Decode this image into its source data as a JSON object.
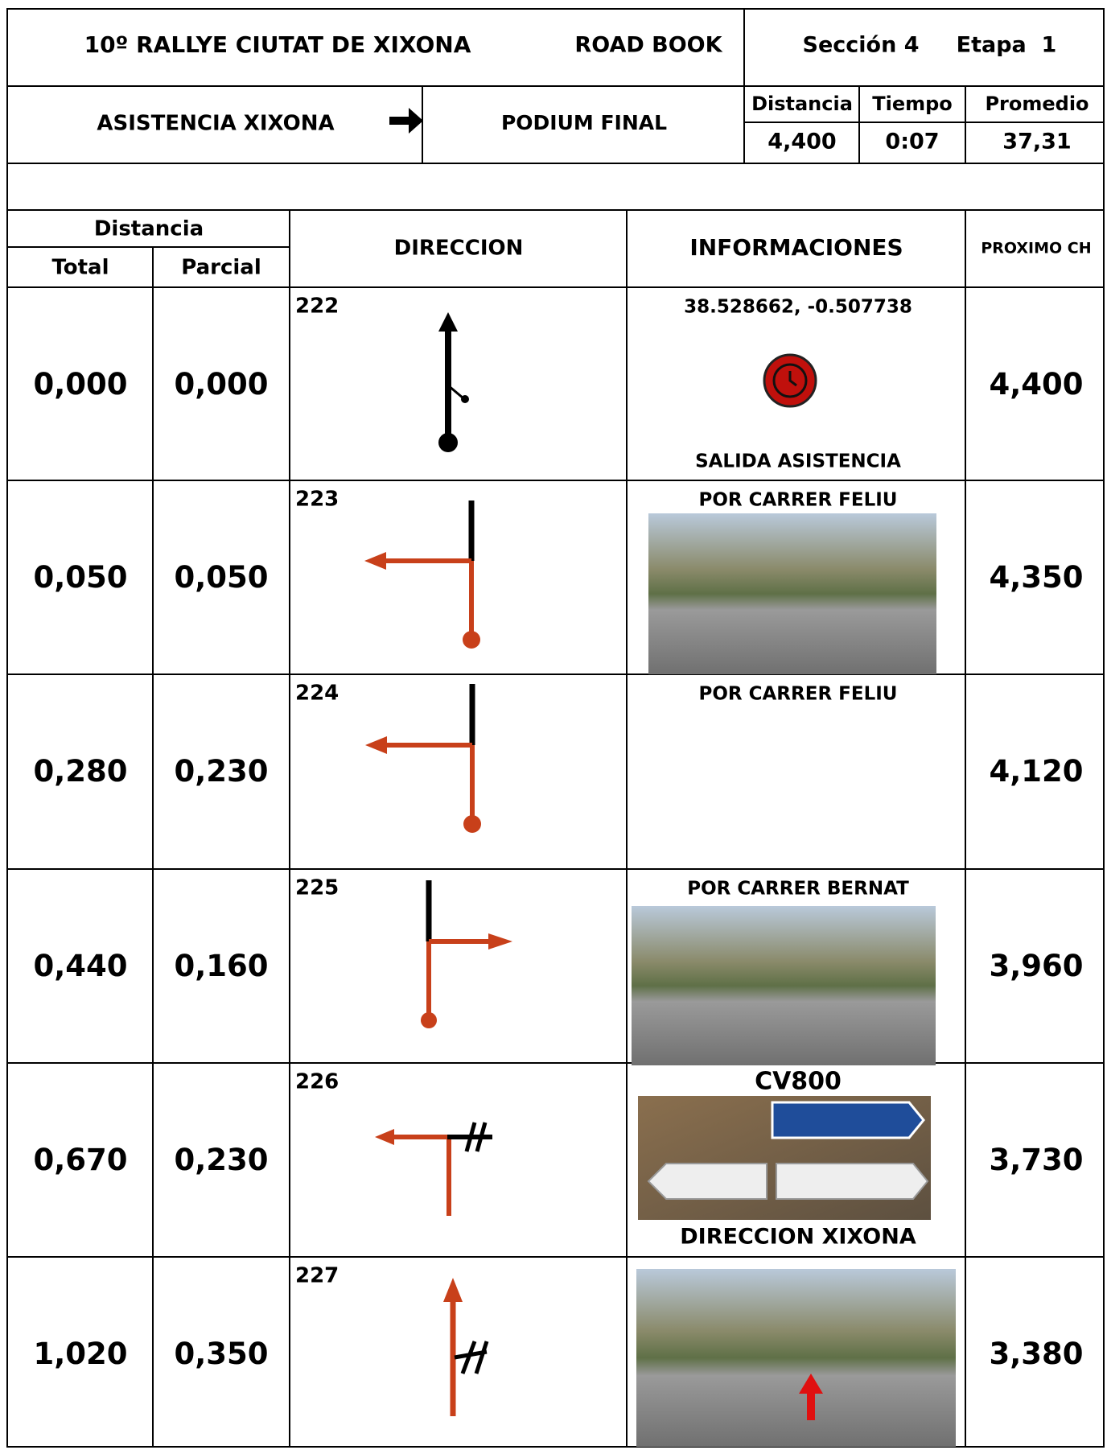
{
  "header": {
    "title": "10º RALLYE CIUTAT DE XIXONA",
    "subtitle": "ROAD BOOK",
    "section": "Sección 4",
    "stage": "Etapa  1"
  },
  "route": {
    "from": "ASISTENCIA XIXONA",
    "to": "PODIUM FINAL",
    "stats_headers": [
      "Distancia",
      "Tiempo",
      "Promedio"
    ],
    "stats_values": [
      "4,400",
      "0:07",
      "37,31"
    ]
  },
  "table": {
    "distance_header": "Distancia",
    "total_header": "Total",
    "partial_header": "Parcial",
    "direction_header": "DIRECCION",
    "info_header": "INFORMACIONES",
    "next_header": "PROXIMO CH",
    "rows": [
      {
        "total": "0,000",
        "partial": "0,000",
        "number": "222",
        "info": "38.528662, -0.507738",
        "info_bottom": "SALIDA ASISTENCIA",
        "next": "4,400"
      },
      {
        "total": "0,050",
        "partial": "0,050",
        "number": "223",
        "info": "POR CARRER FELIU",
        "next": "4,350"
      },
      {
        "total": "0,280",
        "partial": "0,230",
        "number": "224",
        "info": "POR CARRER FELIU",
        "next": "4,120"
      },
      {
        "total": "0,440",
        "partial": "0,160",
        "number": "225",
        "info": "POR CARRER BERNAT",
        "next": "3,960"
      },
      {
        "total": "0,670",
        "partial": "0,230",
        "number": "226",
        "info": "CV800",
        "info_bottom": "DIRECCION XIXONA",
        "next": "3,730"
      },
      {
        "total": "1,020",
        "partial": "0,350",
        "number": "227",
        "next": "3,380"
      }
    ]
  }
}
